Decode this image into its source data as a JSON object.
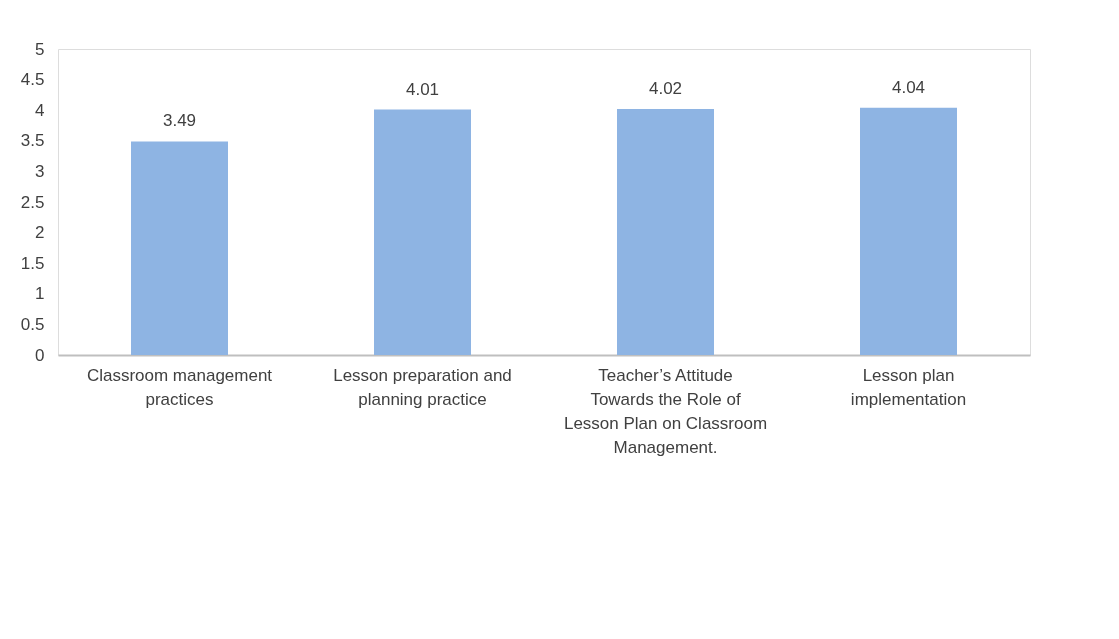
{
  "chart_data": {
    "type": "bar",
    "categories": [
      "Classroom management practices",
      "Lesson preparation and planning practice",
      "Teacher’s Attitude Towards the Role of Lesson Plan on Classroom Management.",
      "Lesson plan implementation"
    ],
    "values": [
      3.49,
      4.01,
      4.02,
      4.04
    ],
    "color": "#8eb4e3",
    "ylim": [
      0,
      5
    ],
    "yticks": [
      0,
      0.5,
      1,
      1.5,
      2,
      2.5,
      3,
      3.5,
      4,
      4.5,
      5
    ],
    "grid": false,
    "data_labels": true
  }
}
